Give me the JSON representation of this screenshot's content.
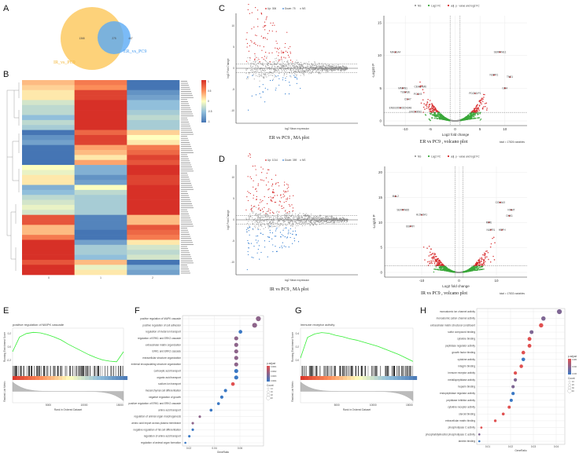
{
  "panels": {
    "A": "A",
    "B": "B",
    "C": "C",
    "D": "D",
    "E": "E",
    "F": "F",
    "G": "G",
    "H": "H"
  },
  "colors": {
    "venn_ir": "#fdd27a",
    "venn_er": "#5aaaf5",
    "up": "#d62728",
    "down": "#2f7bd1",
    "ns": "#9a9a9a",
    "green": "#3aa83a",
    "gsea_line": "#33ee33",
    "low": "#4575b4",
    "high": "#d73027"
  },
  "chart_data": [
    {
      "id": "venn",
      "type": "venn",
      "sets": [
        {
          "name": "IR_vs_PC9",
          "only": "1368"
        },
        {
          "name": "ER_vs_PC9",
          "only": "447"
        }
      ],
      "intersection": "275"
    },
    {
      "id": "heatmap",
      "type": "heatmap",
      "columns": [
        "0",
        "1",
        "2"
      ],
      "colorbar_ticks": [
        "1",
        "0.5",
        "0",
        "-0.5",
        "-1"
      ],
      "zlim": [
        -1,
        1
      ],
      "rows": [
        [
          0.3,
          0.6,
          -1
        ],
        [
          0.2,
          0.5,
          -1
        ],
        [
          0.1,
          0.9,
          -0.8
        ],
        [
          0.1,
          0.9,
          -0.7
        ],
        [
          -0.2,
          1,
          -0.5
        ],
        [
          -0.3,
          1,
          -0.5
        ],
        [
          -0.3,
          1,
          -0.4
        ],
        [
          -0.5,
          1,
          -0.3
        ],
        [
          -0.3,
          1,
          -0.4
        ],
        [
          -0.4,
          1,
          -0.4
        ],
        [
          -1,
          0.7,
          0.2
        ],
        [
          -0.8,
          0.9,
          0
        ],
        [
          -0.7,
          0.9,
          0.1
        ],
        [
          -1,
          0.4,
          0.6
        ],
        [
          -1,
          0.3,
          0.7
        ],
        [
          -1,
          0.1,
          0.9
        ],
        [
          -1,
          0.4,
          0.8
        ],
        [
          0,
          -0.6,
          1
        ],
        [
          -0.1,
          -0.6,
          1
        ],
        [
          0.1,
          -0.8,
          0.9
        ],
        [
          0.1,
          -0.7,
          0.9
        ],
        [
          -0.6,
          0,
          1
        ],
        [
          -0.5,
          -0.3,
          1
        ],
        [
          -0.3,
          -0.4,
          1
        ],
        [
          -0.2,
          -0.4,
          1
        ],
        [
          -0.1,
          -0.4,
          1
        ],
        [
          -0.2,
          -0.4,
          1
        ],
        [
          0.8,
          -0.9,
          0.3
        ],
        [
          0.8,
          -0.9,
          0.3
        ],
        [
          0.3,
          -0.9,
          0.8
        ],
        [
          0.3,
          -1,
          0.7
        ],
        [
          0.6,
          -1,
          0.6
        ],
        [
          1,
          -0.7,
          0.1
        ],
        [
          1,
          -0.4,
          -0.2
        ],
        [
          1,
          -0.4,
          -0.3
        ],
        [
          1,
          -0.5,
          -0.2
        ],
        [
          0.8,
          0.3,
          -1
        ],
        [
          1,
          -0.1,
          -0.6
        ],
        [
          1,
          0.1,
          -0.7
        ]
      ]
    },
    {
      "id": "ma_er",
      "type": "scatter",
      "title": "ER vs PC9 , MA plot",
      "xlabel": "log2 Mean expression",
      "ylabel": "log2 Fold Change",
      "legend": [
        "Up: 306",
        "Down: 75",
        "NS"
      ],
      "up": 306,
      "down": 75,
      "yticks": [
        "10",
        "5",
        "0",
        "-5",
        "-10"
      ],
      "ylim": [
        -13,
        13
      ],
      "xlim": [
        0,
        18
      ]
    },
    {
      "id": "volcano_er",
      "type": "scatter",
      "title": "ER vs PC9 , volcano plot",
      "caption": "total = 17826 variables",
      "xlabel": "Log2 fold change",
      "ylabel": "-Log10 P",
      "legend": [
        "NS",
        "Log2 FC",
        "adj. p - value and log2 FC"
      ],
      "xticks": [
        "-10",
        "-5",
        "0",
        "5",
        "10"
      ],
      "xtick_values": [
        -10,
        -5,
        0,
        5,
        10
      ],
      "yticks": [
        "0",
        "5",
        "10",
        "15"
      ],
      "ytick_values": [
        0,
        5,
        10,
        15
      ],
      "xlim": [
        -14,
        14
      ],
      "ylim": [
        -0.7,
        16.5
      ],
      "fc_cutoff": 1,
      "p_cutoff": 1.3,
      "labels": [
        {
          "gene": "MAGEA4",
          "x": -12,
          "y": 10.5
        },
        {
          "gene": "SERPINE1",
          "x": 9,
          "y": 10.5
        },
        {
          "gene": "NUPR1",
          "x": 7.8,
          "y": 7
        },
        {
          "gene": "TNS1",
          "x": 11,
          "y": 6.7
        },
        {
          "gene": "MMRN1",
          "x": -10.5,
          "y": 5
        },
        {
          "gene": "TUBA3E",
          "x": -10,
          "y": 4.4
        },
        {
          "gene": "CEACAM6",
          "x": -7,
          "y": 5.2
        },
        {
          "gene": "PCSK9",
          "x": -7.5,
          "y": 4.1
        },
        {
          "gene": "CDH7",
          "x": -9.5,
          "y": 3.3
        },
        {
          "gene": "ENSG00000224348",
          "x": -11,
          "y": 2
        },
        {
          "gene": "LINC00632",
          "x": -8,
          "y": 1.4
        },
        {
          "gene": "PDZK1IP1",
          "x": 4,
          "y": 4.2
        },
        {
          "gene": "GDA",
          "x": 10,
          "y": 5
        }
      ]
    },
    {
      "id": "ma_ir",
      "type": "scatter",
      "title": "IR vs PC9 , MA plot",
      "xlabel": "log2 Mean expression",
      "ylabel": "log2 Fold Change",
      "legend": [
        "Up: 1014",
        "Down: 359",
        "NS"
      ],
      "up": 1014,
      "down": 359,
      "yticks": [
        "10",
        "5",
        "0",
        "-5",
        "-10"
      ],
      "ylim": [
        -13,
        13
      ],
      "xlim": [
        0,
        18
      ]
    },
    {
      "id": "volcano_ir",
      "type": "scatter",
      "title": "IR vs PC9 , volcano plot",
      "caption": "total = 17833 variables",
      "xlabel": "Log2 fold change",
      "ylabel": "-Log10 P",
      "legend": [
        "NS",
        "Log2 FC",
        "adj. p - value and log2 FC"
      ],
      "xticks": [
        "-10",
        "0",
        "10"
      ],
      "xtick_values": [
        -10,
        0,
        10
      ],
      "yticks": [
        "0",
        "5",
        "10",
        "15",
        "20"
      ],
      "ytick_values": [
        0,
        5,
        10,
        15,
        20
      ],
      "xlim": [
        -19,
        19
      ],
      "ylim": [
        -0.7,
        21.5
      ],
      "fc_cutoff": 1,
      "p_cutoff": 1.3,
      "labels": [
        {
          "gene": "MAL2",
          "x": -17,
          "y": 15.2
        },
        {
          "gene": "SERPINB5",
          "x": -15,
          "y": 12.5
        },
        {
          "gene": "ALDH3A1",
          "x": -10,
          "y": 11.5
        },
        {
          "gene": "BSPRY",
          "x": -13,
          "y": 9.2
        },
        {
          "gene": "COL6A3",
          "x": 11,
          "y": 14
        },
        {
          "gene": "NNMT",
          "x": 14,
          "y": 12.5
        },
        {
          "gene": "DKK1",
          "x": 13.5,
          "y": 11.3
        },
        {
          "gene": "MME",
          "x": 8,
          "y": 10
        },
        {
          "gene": "NUPR1",
          "x": 8.5,
          "y": 8.5
        },
        {
          "gene": "HEPH",
          "x": 11.5,
          "y": 8.5
        }
      ]
    },
    {
      "id": "gsea_er",
      "type": "line",
      "title": "positive regulation of MAPK cascade",
      "xlabel": "Rank in Ordered Dataset",
      "ylabel": "Running Enrichment Score",
      "ylabel2": "Ranked List Metric",
      "xticks": [
        "5000",
        "10000",
        "15000"
      ],
      "yticks": [
        "0.2",
        "0.0",
        "-0.2"
      ],
      "es": [
        -0.05,
        0.2,
        0.26,
        0.28,
        0.27,
        0.24,
        0.2,
        0.15,
        0.08,
        0.02,
        -0.04,
        -0.1,
        -0.15,
        -0.19,
        -0.21,
        -0.22,
        -0.05
      ]
    },
    {
      "id": "go_er",
      "type": "scatter",
      "xlabel": "GeneRatio",
      "xticks": [
        "0.02",
        "0.04",
        "0.06"
      ],
      "xtick_values": [
        0.02,
        0.04,
        0.06
      ],
      "legend_color_title": "p.adjust",
      "legend_color_ticks": [
        "0.0001",
        "0.0002",
        "0.0003",
        "0.0004"
      ],
      "legend_size_title": "Count",
      "legend_size_ticks": [
        "14",
        "16",
        "18",
        "20"
      ],
      "terms": [
        "positive regulation of MAPK cascade",
        "positive regulation of cell adhesion",
        "regulation of metal ion transport",
        "regulation of ERK1 and ERK2 cascade",
        "extracellular matrix organization",
        "ERK1 and ERK2 cascade",
        "extracellular structure organization",
        "external encapsulating structure organization",
        "carboxylic acid transport",
        "organic acid transport",
        "sodium ion transport",
        "mesenchymal cell differentiation",
        "negative regulation of growth",
        "positive regulation of ERK1 and ERK2 cascade",
        "amino acid transport",
        "regulation of animal organ morphogenesis",
        "amino acid import across plasma membrane",
        "negative regulation of fat cell differentiation",
        "regulation of amino acid transport",
        "regulation of animal organ formation"
      ],
      "gene_ratio": [
        0.0744,
        0.0715,
        0.0604,
        0.0571,
        0.0571,
        0.0571,
        0.0571,
        0.0571,
        0.0571,
        0.0571,
        0.0545,
        0.0487,
        0.0458,
        0.0432,
        0.0374,
        0.0286,
        0.0231,
        0.0231,
        0.0204,
        0.0173
      ],
      "p_adjust": [
        0.0003,
        0.0003,
        0.0005,
        0.0003,
        0.0003,
        0.0003,
        0.0003,
        0.0003,
        0.0005,
        0.0005,
        0.0001,
        0.0005,
        0.0005,
        0.0005,
        0.0005,
        0.0003,
        0.0003,
        0.0005,
        0.0005,
        0.0005
      ],
      "count": [
        20,
        20,
        17,
        18,
        18,
        18,
        18,
        18,
        18,
        18,
        17,
        16,
        16,
        15,
        15,
        14,
        14,
        14,
        14,
        13
      ]
    },
    {
      "id": "gsea_ir",
      "type": "line",
      "title": "immune receptor activity",
      "xlabel": "Rank in Ordered Dataset",
      "ylabel": "Running Enrichment Score",
      "ylabel2": "Ranked List Metric",
      "xticks": [
        "5000",
        "10000",
        "15000"
      ],
      "yticks": [
        "0.4",
        "0.2",
        "0.0"
      ],
      "es": [
        0.05,
        0.35,
        0.4,
        0.42,
        0.41,
        0.38,
        0.36,
        0.33,
        0.31,
        0.28,
        0.25,
        0.22,
        0.18,
        0.14,
        0.1,
        0.05,
        0.0
      ]
    },
    {
      "id": "go_ir",
      "type": "scatter",
      "xlabel": "GeneRatio",
      "xticks": [
        "0.01",
        "0.02",
        "0.03",
        "0.04"
      ],
      "xtick_values": [
        0.01,
        0.02,
        0.03,
        0.04
      ],
      "legend_color_title": "p.adjust",
      "legend_color_ticks": [
        "0.005",
        "0.010",
        "0.015"
      ],
      "legend_size_title": "Count",
      "legend_size_ticks": [
        "10",
        "20",
        "30",
        "40"
      ],
      "terms": [
        "monoatomic ion channel activity",
        "monoatomic cation channel activity",
        "extracellular matrix structural constituent",
        "sulfur compound binding",
        "cytokine binding",
        "peptidase regulator activity",
        "growth factor binding",
        "cytokine activity",
        "integrin binding",
        "immune receptor activity",
        "metallopeptidase activity",
        "heparin binding",
        "endopeptidase regulator activity",
        "peptidase inhibitor activity",
        "cytokine receptor activity",
        "steroid binding",
        "extracellular matrix binding",
        "phospholipase C activity",
        "phosphatidylinositol phospholipase C activity",
        "laminin binding"
      ],
      "gene_ratio": [
        0.0414,
        0.0344,
        0.0334,
        0.0292,
        0.0283,
        0.0283,
        0.0256,
        0.0256,
        0.0247,
        0.0221,
        0.0221,
        0.0211,
        0.0211,
        0.0203,
        0.0194,
        0.0168,
        0.0133,
        0.0072,
        0.0063,
        0.0063
      ],
      "p_adjust": [
        0.01,
        0.01,
        0.003,
        0.01,
        0.003,
        0.003,
        0.003,
        0.015,
        0.003,
        0.003,
        0.01,
        0.01,
        0.015,
        0.015,
        0.003,
        0.003,
        0.003,
        0.003,
        0.01,
        0.015
      ],
      "count": [
        45,
        38,
        37,
        32,
        31,
        31,
        28,
        28,
        27,
        24,
        24,
        23,
        23,
        22,
        21,
        18,
        15,
        8,
        7,
        7
      ]
    }
  ]
}
